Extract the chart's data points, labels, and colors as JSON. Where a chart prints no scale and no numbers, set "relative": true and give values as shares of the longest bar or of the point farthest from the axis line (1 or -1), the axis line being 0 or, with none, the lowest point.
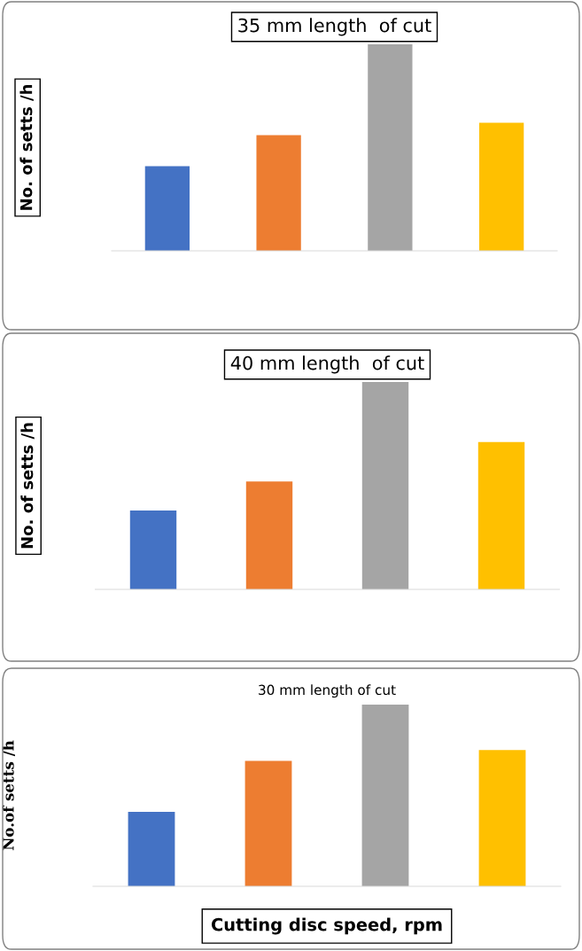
{
  "chart_data": [
    {
      "type": "bar",
      "title": "35 mm length  of cut",
      "ylabel": "No. of setts /h",
      "relative": true,
      "categories": [
        null,
        null,
        null,
        null
      ],
      "values": [
        0.41,
        0.56,
        1,
        0.62
      ],
      "colors": [
        "#4472c4",
        "#ed7d31",
        "#a5a5a5",
        "#ffc000"
      ]
    },
    {
      "type": "bar",
      "title": "40 mm length  of cut",
      "ylabel": "No. of setts /h",
      "relative": true,
      "categories": [
        null,
        null,
        null,
        null
      ],
      "values": [
        0.38,
        0.52,
        1,
        0.71
      ],
      "colors": [
        "#4472c4",
        "#ed7d31",
        "#a5a5a5",
        "#ffc000"
      ]
    },
    {
      "type": "bar",
      "title": "30 mm length of cut",
      "ylabel": "No.of setts /h",
      "xlabel": "Cutting disc speed, rpm",
      "relative": true,
      "categories": [
        null,
        null,
        null,
        null
      ],
      "values": [
        0.41,
        0.69,
        1,
        0.75
      ],
      "colors": [
        "#4472c4",
        "#ed7d31",
        "#a5a5a5",
        "#ffc000"
      ]
    }
  ]
}
